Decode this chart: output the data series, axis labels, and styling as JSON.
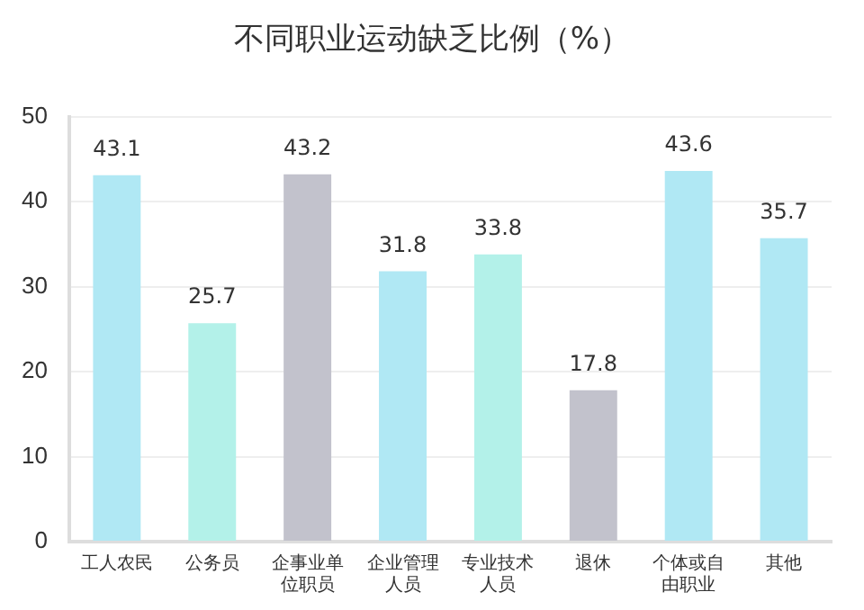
{
  "chart_data": {
    "type": "bar",
    "title": "不同职业运动缺乏比例（%）",
    "categories": [
      "工人农民",
      "公务员",
      "企事业单位职员",
      "企业管理人员",
      "专业技术人员",
      "退休",
      "个体或自由职业",
      "其他"
    ],
    "values": [
      43.1,
      25.7,
      43.2,
      31.8,
      33.8,
      17.8,
      43.6,
      35.7
    ],
    "colors": [
      "#b0e8f4",
      "#b3f1e9",
      "#c2c2cc",
      "#b0e8f4",
      "#b3f1e9",
      "#c2c2cc",
      "#b0e8f4",
      "#b0e8f4"
    ],
    "ylim": [
      0,
      50
    ],
    "yticks": [
      0,
      10,
      20,
      30,
      40,
      50
    ],
    "grid": "y",
    "data_labels": true
  }
}
